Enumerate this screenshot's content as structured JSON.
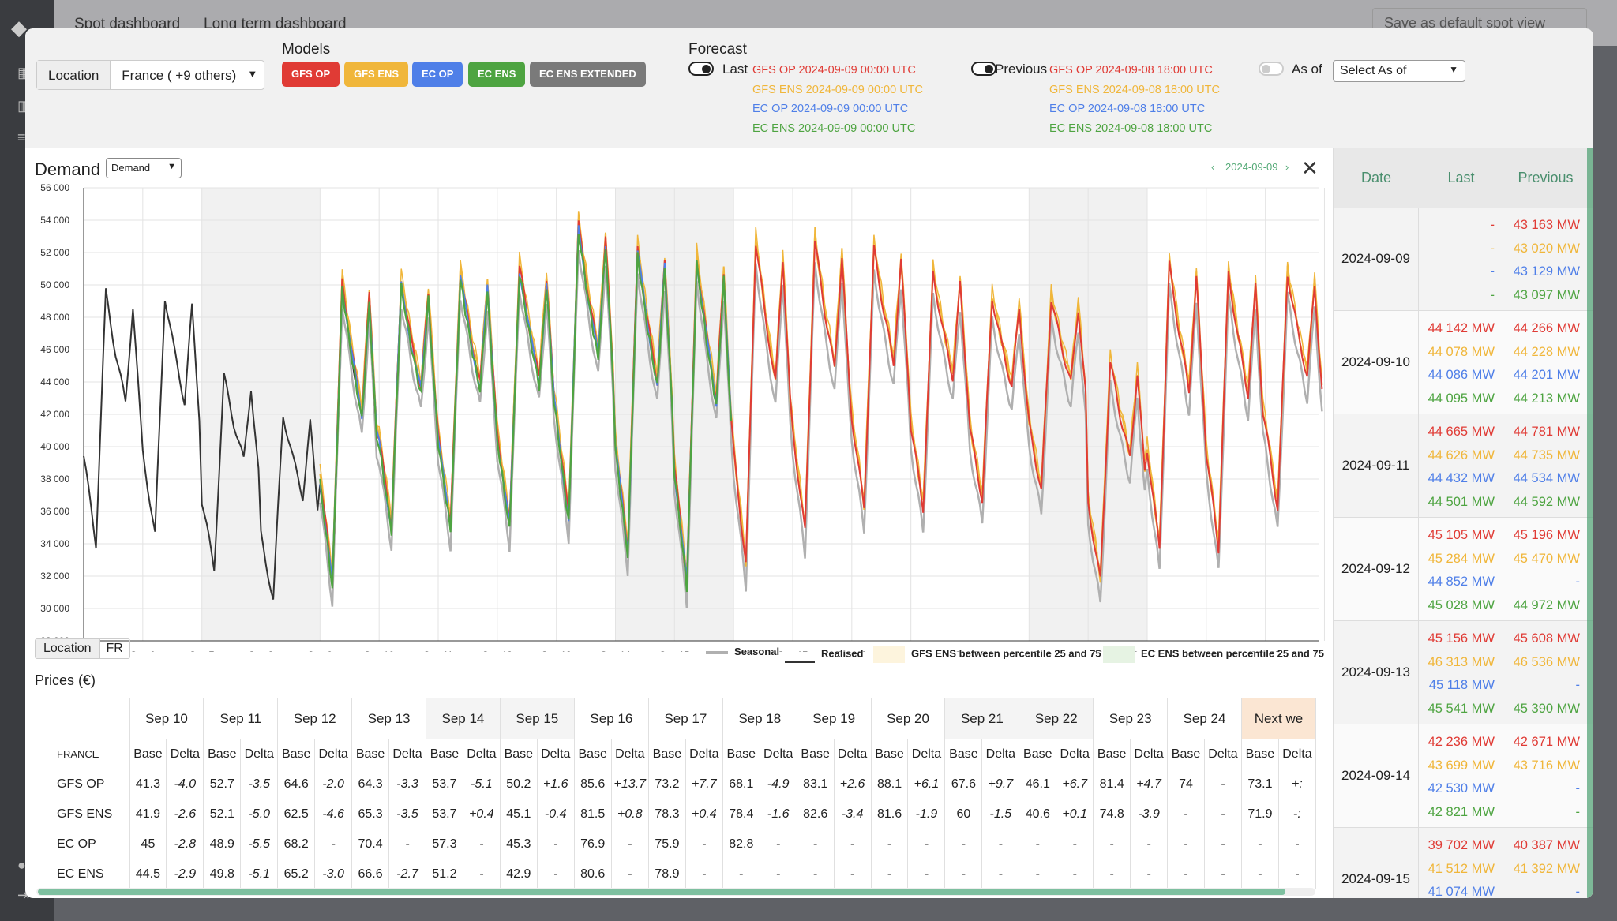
{
  "background": {
    "tabs": [
      "Spot dashboard",
      "Long term dashboard"
    ],
    "save_label": "Save as default spot view"
  },
  "header": {
    "location_label": "Location",
    "location_value": "France ( +9 others)",
    "models_title": "Models",
    "models": [
      {
        "label": "GFS OP",
        "color": "#e03b35"
      },
      {
        "label": "GFS ENS",
        "color": "#f0b63a"
      },
      {
        "label": "EC OP",
        "color": "#4f7fe8"
      },
      {
        "label": "EC ENS",
        "color": "#4ea441"
      },
      {
        "label": "EC ENS EXTENDED",
        "color": "#7a7a7a"
      }
    ],
    "forecast_title": "Forecast",
    "last_label": "Last",
    "last_runs": [
      "GFS OP 2024-09-09 00:00 UTC",
      "GFS ENS 2024-09-09 00:00 UTC",
      "EC OP 2024-09-09 00:00 UTC",
      "EC ENS 2024-09-09 00:00 UTC"
    ],
    "previous_label": "Previous",
    "previous_runs": [
      "GFS OP 2024-09-08 18:00 UTC",
      "GFS ENS 2024-09-08 18:00 UTC",
      "EC OP 2024-09-08 18:00 UTC",
      "EC ENS 2024-09-08 18:00 UTC"
    ],
    "asof_label": "As of",
    "asof_placeholder": "Select As of"
  },
  "chart_panel": {
    "title": "Demand",
    "selector": "Demand",
    "nav_date": "2024-09-09",
    "location_label": "Location",
    "location_value": "FR",
    "legend": [
      "Seasonal",
      "Realised",
      "GFS ENS between percentile 25 and 75",
      "EC ENS between percentile 25 and 75"
    ]
  },
  "chart_data": {
    "type": "line",
    "title": "Demand",
    "ylim": [
      28000,
      56000
    ],
    "yticks": [
      "56 000",
      "54 000",
      "52 000",
      "50 000",
      "48 000",
      "46 000",
      "44 000",
      "42 000",
      "40 000",
      "38 000",
      "36 000",
      "34 000",
      "32 000",
      "30 000",
      "28 000"
    ],
    "xticks": [
      "Sep 5",
      "Sep 6",
      "Sep 7",
      "Sep 8",
      "Sep 9",
      "Sep 10",
      "Sep 11",
      "Sep 12",
      "Sep 13",
      "Sep 14",
      "Sep 15",
      "Sep 16",
      "Sep 17",
      "Sep 18",
      "Sep 19",
      "Sep 20",
      "Sep 21",
      "Sep 22",
      "Sep 23",
      "Sep 24",
      "Sep 25",
      "Sep..."
    ],
    "daily_min_max": [
      [
        34000,
        49500
      ],
      [
        34500,
        49300
      ],
      [
        32500,
        44300
      ],
      [
        30500,
        42000
      ],
      [
        31500,
        50000
      ],
      [
        35000,
        50000
      ],
      [
        35000,
        50500
      ],
      [
        35000,
        51000
      ],
      [
        35500,
        53500
      ],
      [
        33500,
        52000
      ],
      [
        31500,
        51500
      ],
      [
        32500,
        52500
      ],
      [
        34500,
        52500
      ],
      [
        36000,
        52000
      ],
      [
        36000,
        50500
      ],
      [
        36500,
        49000
      ],
      [
        37000,
        49000
      ],
      [
        31500,
        45000
      ],
      [
        33500,
        51000
      ],
      [
        33500,
        50500
      ],
      [
        36000,
        50500
      ]
    ],
    "colors": {
      "realised": "#333333",
      "seasonal": "#b0b0b0",
      "gfs_op": "#e03b35",
      "gfs_ens": "#f0b63a",
      "ec_op": "#4f7fe8",
      "ec_ens": "#4ea441"
    }
  },
  "prices": {
    "title": "Prices (€)",
    "region": "FRANCE",
    "days": [
      "Sep 10",
      "Sep 11",
      "Sep 12",
      "Sep 13",
      "Sep 14",
      "Sep 15",
      "Sep 16",
      "Sep 17",
      "Sep 18",
      "Sep 19",
      "Sep 20",
      "Sep 21",
      "Sep 22",
      "Sep 23",
      "Sep 24",
      "Next we"
    ],
    "base": "Base",
    "delta": "Delta",
    "rows": [
      {
        "label": "GFS OP",
        "cells": [
          "41.3",
          "-4.0",
          "52.7",
          "-3.5",
          "64.6",
          "-2.0",
          "64.3",
          "-3.3",
          "53.7",
          "-5.1",
          "50.2",
          "+1.6",
          "85.6",
          "+13.7",
          "73.2",
          "+7.7",
          "68.1",
          "-4.9",
          "83.1",
          "+2.6",
          "88.1",
          "+6.1",
          "67.6",
          "+9.7",
          "46.1",
          "+6.7",
          "81.4",
          "+4.7",
          "74",
          "-",
          "73.1",
          "+:"
        ]
      },
      {
        "label": "GFS ENS",
        "cells": [
          "41.9",
          "-2.6",
          "52.1",
          "-5.0",
          "62.5",
          "-4.6",
          "65.3",
          "-3.5",
          "53.7",
          "+0.4",
          "45.1",
          "-0.4",
          "81.5",
          "+0.8",
          "78.3",
          "+0.4",
          "78.4",
          "-1.6",
          "82.6",
          "-3.4",
          "81.6",
          "-1.9",
          "60",
          "-1.5",
          "40.6",
          "+0.1",
          "74.8",
          "-3.9",
          "-",
          "-",
          "71.9",
          "-:"
        ]
      },
      {
        "label": "EC OP",
        "cells": [
          "45",
          "-2.8",
          "48.9",
          "-5.5",
          "68.2",
          "-",
          "70.4",
          "-",
          "57.3",
          "-",
          "45.3",
          "-",
          "76.9",
          "-",
          "75.9",
          "-",
          "82.8",
          "-",
          "-",
          "-",
          "-",
          "-",
          "-",
          "-",
          "-",
          "-",
          "-",
          "-",
          "-",
          "-",
          "-",
          "-"
        ]
      },
      {
        "label": "EC ENS",
        "cells": [
          "44.5",
          "-2.9",
          "49.8",
          "-5.1",
          "65.2",
          "-3.0",
          "66.6",
          "-2.7",
          "51.2",
          "-",
          "42.9",
          "-",
          "80.6",
          "-",
          "78.9",
          "-",
          "-",
          "-",
          "-",
          "-",
          "-",
          "-",
          "-",
          "-",
          "-",
          "-",
          "-",
          "-",
          "-",
          "-",
          "-",
          "-"
        ]
      }
    ]
  },
  "side_table": {
    "headers": [
      "Date",
      "Last",
      "Previous"
    ],
    "rows": [
      {
        "date": "2024-09-09",
        "last": [
          "-",
          "-",
          "-",
          "-"
        ],
        "prev": [
          "43 163 MW",
          "43 020 MW",
          "43 129 MW",
          "43 097 MW"
        ]
      },
      {
        "date": "2024-09-10",
        "last": [
          "44 142 MW",
          "44 078 MW",
          "44 086 MW",
          "44 095 MW"
        ],
        "prev": [
          "44 266 MW",
          "44 228 MW",
          "44 201 MW",
          "44 213 MW"
        ]
      },
      {
        "date": "2024-09-11",
        "last": [
          "44 665 MW",
          "44 626 MW",
          "44 432 MW",
          "44 501 MW"
        ],
        "prev": [
          "44 781 MW",
          "44 735 MW",
          "44 534 MW",
          "44 592 MW"
        ]
      },
      {
        "date": "2024-09-12",
        "last": [
          "45 105 MW",
          "45 284 MW",
          "44 852 MW",
          "45 028 MW"
        ],
        "prev": [
          "45 196 MW",
          "45 470 MW",
          "-",
          "44 972 MW"
        ]
      },
      {
        "date": "2024-09-13",
        "last": [
          "45 156 MW",
          "46 313 MW",
          "45 118 MW",
          "45 541 MW"
        ],
        "prev": [
          "45 608 MW",
          "46 536 MW",
          "-",
          "45 390 MW"
        ]
      },
      {
        "date": "2024-09-14",
        "last": [
          "42 236 MW",
          "43 699 MW",
          "42 530 MW",
          "42 821 MW"
        ],
        "prev": [
          "42 671 MW",
          "43 716 MW",
          "-",
          "-"
        ]
      },
      {
        "date": "2024-09-15",
        "last": [
          "39 702 MW",
          "41 512 MW",
          "41 074 MW",
          ""
        ],
        "prev": [
          "40 387 MW",
          "41 392 MW",
          "-",
          ""
        ]
      }
    ]
  }
}
